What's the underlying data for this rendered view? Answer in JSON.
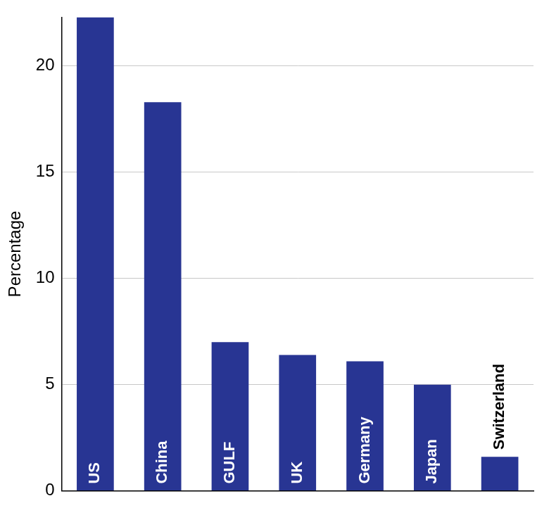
{
  "chart_data": {
    "type": "bar",
    "y_label": "Percentage",
    "categories": [
      "US",
      "China",
      "GULF",
      "UK",
      "Germany",
      "Japan",
      "Switzerland"
    ],
    "values": [
      22.3,
      18.3,
      7.0,
      6.4,
      6.1,
      5.0,
      1.6
    ],
    "color": "#283593",
    "ylim": [
      0,
      22.3
    ],
    "yticks": [
      0,
      5,
      10,
      15,
      20
    ],
    "grid": true
  }
}
